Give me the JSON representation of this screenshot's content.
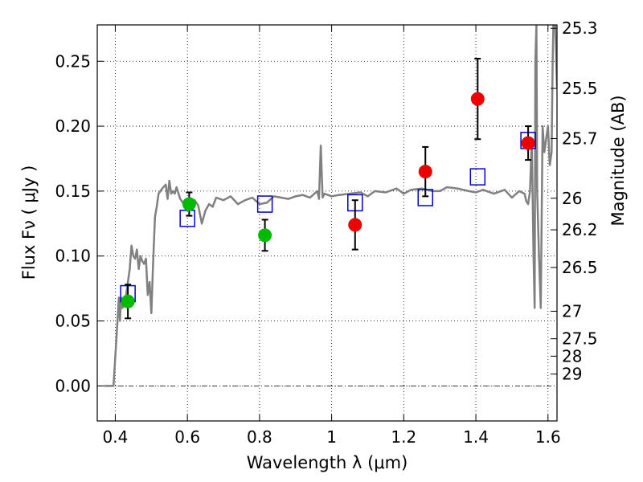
{
  "chart_data": {
    "type": "scatter",
    "xlabel": "Wavelength  λ (μm)",
    "ylabel": "Flux  Fν  ( μJy )",
    "y2label": "Magnitude (AB)",
    "xlim": [
      0.35,
      1.625
    ],
    "ylim": [
      -0.027,
      0.278
    ],
    "grid": true,
    "x_ticks": [
      {
        "v": 0.4,
        "label": "0.4"
      },
      {
        "v": 0.6,
        "label": "0.6"
      },
      {
        "v": 0.8,
        "label": "0.8"
      },
      {
        "v": 1.0,
        "label": "1"
      },
      {
        "v": 1.2,
        "label": "1.2"
      },
      {
        "v": 1.4,
        "label": "1.4"
      },
      {
        "v": 1.6,
        "label": "1.6"
      }
    ],
    "y_ticks": [
      {
        "v": 0.0,
        "label": "0.00"
      },
      {
        "v": 0.05,
        "label": "0.05"
      },
      {
        "v": 0.1,
        "label": "0.10"
      },
      {
        "v": 0.15,
        "label": "0.15"
      },
      {
        "v": 0.2,
        "label": "0.20"
      },
      {
        "v": 0.25,
        "label": "0.25"
      }
    ],
    "mag_ticks": [
      {
        "label": "25.3",
        "flux": 0.2754
      },
      {
        "label": "25.5",
        "flux": 0.2291
      },
      {
        "label": "25.7",
        "flux": 0.1905
      },
      {
        "label": "26",
        "flux": 0.1445
      },
      {
        "label": "26.2",
        "flux": 0.1202
      },
      {
        "label": "26.5",
        "flux": 0.0912
      },
      {
        "label": "27",
        "flux": 0.0575
      },
      {
        "label": "27.5",
        "flux": 0.0363
      },
      {
        "label": "28",
        "flux": 0.0229
      },
      {
        "label": "29",
        "flux": 0.0091
      }
    ],
    "spectrum": {
      "color": "#808080",
      "x": [
        0.37,
        0.395,
        0.405,
        0.41,
        0.413,
        0.416,
        0.42,
        0.425,
        0.43,
        0.44,
        0.445,
        0.45,
        0.455,
        0.46,
        0.465,
        0.47,
        0.475,
        0.48,
        0.485,
        0.49,
        0.495,
        0.5,
        0.505,
        0.51,
        0.515,
        0.52,
        0.53,
        0.54,
        0.545,
        0.55,
        0.555,
        0.56,
        0.565,
        0.57,
        0.58,
        0.59,
        0.6,
        0.61,
        0.62,
        0.63,
        0.64,
        0.65,
        0.66,
        0.67,
        0.68,
        0.7,
        0.72,
        0.74,
        0.76,
        0.78,
        0.8,
        0.82,
        0.84,
        0.86,
        0.88,
        0.9,
        0.92,
        0.94,
        0.96,
        0.965,
        0.97,
        0.975,
        0.98,
        1.0,
        1.02,
        1.05,
        1.08,
        1.1,
        1.12,
        1.15,
        1.18,
        1.2,
        1.22,
        1.25,
        1.28,
        1.3,
        1.32,
        1.35,
        1.38,
        1.4,
        1.42,
        1.45,
        1.48,
        1.5,
        1.52,
        1.535,
        1.54,
        1.545,
        1.55,
        1.555,
        1.56,
        1.563,
        1.565,
        1.568,
        1.57,
        1.575,
        1.58,
        1.585,
        1.59,
        1.595,
        1.6,
        1.605,
        1.61,
        1.613,
        1.615,
        1.62,
        1.625
      ],
      "y": [
        0.0,
        0.0,
        0.045,
        0.068,
        0.05,
        0.068,
        0.06,
        0.065,
        0.07,
        0.09,
        0.108,
        0.1,
        0.098,
        0.105,
        0.09,
        0.1,
        0.096,
        0.094,
        0.098,
        0.07,
        0.08,
        0.056,
        0.095,
        0.13,
        0.138,
        0.148,
        0.152,
        0.155,
        0.144,
        0.158,
        0.148,
        0.15,
        0.148,
        0.153,
        0.144,
        0.14,
        0.142,
        0.138,
        0.143,
        0.139,
        0.125,
        0.135,
        0.14,
        0.138,
        0.145,
        0.143,
        0.146,
        0.14,
        0.143,
        0.145,
        0.14,
        0.141,
        0.146,
        0.145,
        0.144,
        0.146,
        0.147,
        0.145,
        0.15,
        0.144,
        0.185,
        0.145,
        0.148,
        0.146,
        0.147,
        0.148,
        0.149,
        0.146,
        0.15,
        0.149,
        0.152,
        0.148,
        0.151,
        0.152,
        0.15,
        0.15,
        0.153,
        0.152,
        0.15,
        0.149,
        0.151,
        0.148,
        0.151,
        0.145,
        0.15,
        0.148,
        0.142,
        0.14,
        0.15,
        0.19,
        0.1,
        0.06,
        0.25,
        0.278,
        0.15,
        0.1,
        0.06,
        0.2,
        0.18,
        0.19,
        0.2,
        0.17,
        0.18,
        0.25,
        0.278,
        0.278,
        0.23
      ]
    },
    "series": [
      {
        "marker": "square-open",
        "color": "#0000cc",
        "points": [
          {
            "x": 0.435,
            "y": 0.071
          },
          {
            "x": 0.6,
            "y": 0.129
          },
          {
            "x": 0.815,
            "y": 0.14
          },
          {
            "x": 1.065,
            "y": 0.141
          },
          {
            "x": 1.26,
            "y": 0.145
          },
          {
            "x": 1.405,
            "y": 0.161
          },
          {
            "x": 1.545,
            "y": 0.189
          }
        ]
      },
      {
        "marker": "circle",
        "color": "#00bb00",
        "points": [
          {
            "x": 0.435,
            "y": 0.065,
            "err": 0.013
          },
          {
            "x": 0.605,
            "y": 0.14,
            "err": 0.009
          },
          {
            "x": 0.815,
            "y": 0.116,
            "err": 0.012
          }
        ]
      },
      {
        "marker": "circle",
        "color": "#ee0000",
        "points": [
          {
            "x": 1.065,
            "y": 0.124,
            "err": 0.019
          },
          {
            "x": 1.26,
            "y": 0.165,
            "err": 0.019
          },
          {
            "x": 1.405,
            "y": 0.221,
            "err": 0.031
          },
          {
            "x": 1.545,
            "y": 0.187,
            "err": 0.013
          }
        ]
      }
    ]
  }
}
